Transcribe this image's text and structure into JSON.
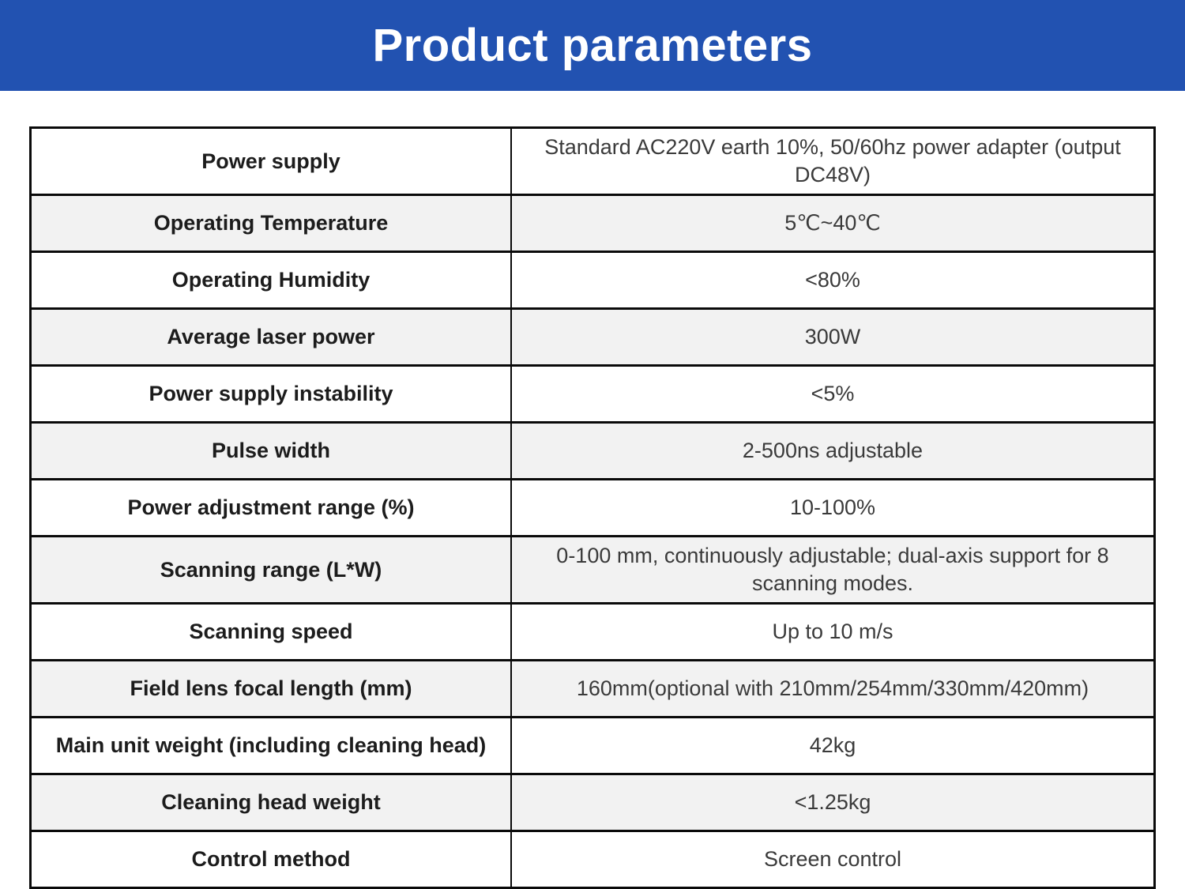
{
  "header": {
    "title": "Product parameters",
    "bg_color": "#2252b1",
    "text_color": "#ffffff"
  },
  "table": {
    "zebra_color": "#f2f2f2",
    "border_color": "#0a0a0a",
    "columns": [
      "parameter",
      "value"
    ],
    "rows": [
      {
        "label": "Power supply",
        "value": "Standard AC220V earth 10%, 50/60hz power adapter (output DC48V)"
      },
      {
        "label": "Operating Temperature",
        "value": "5℃~40℃"
      },
      {
        "label": "Operating Humidity",
        "value": "<80%"
      },
      {
        "label": "Average laser power",
        "value": "300W"
      },
      {
        "label": "Power supply instability",
        "value": "<5%"
      },
      {
        "label": "Pulse width",
        "value": "2-500ns adjustable"
      },
      {
        "label": "Power adjustment range (%)",
        "value": "10-100%"
      },
      {
        "label": "Scanning range (L*W)",
        "value": "0-100 mm, continuously adjustable; dual-axis support for 8 scanning modes."
      },
      {
        "label": "Scanning speed",
        "value": "Up to 10 m/s"
      },
      {
        "label": "Field lens focal length (mm)",
        "value": "160mm(optional with 210mm/254mm/330mm/420mm)"
      },
      {
        "label": "Main unit weight (including cleaning head)",
        "value": "42kg"
      },
      {
        "label": "Cleaning head weight",
        "value": "<1.25kg"
      },
      {
        "label": "Control method",
        "value": "Screen control"
      }
    ]
  }
}
